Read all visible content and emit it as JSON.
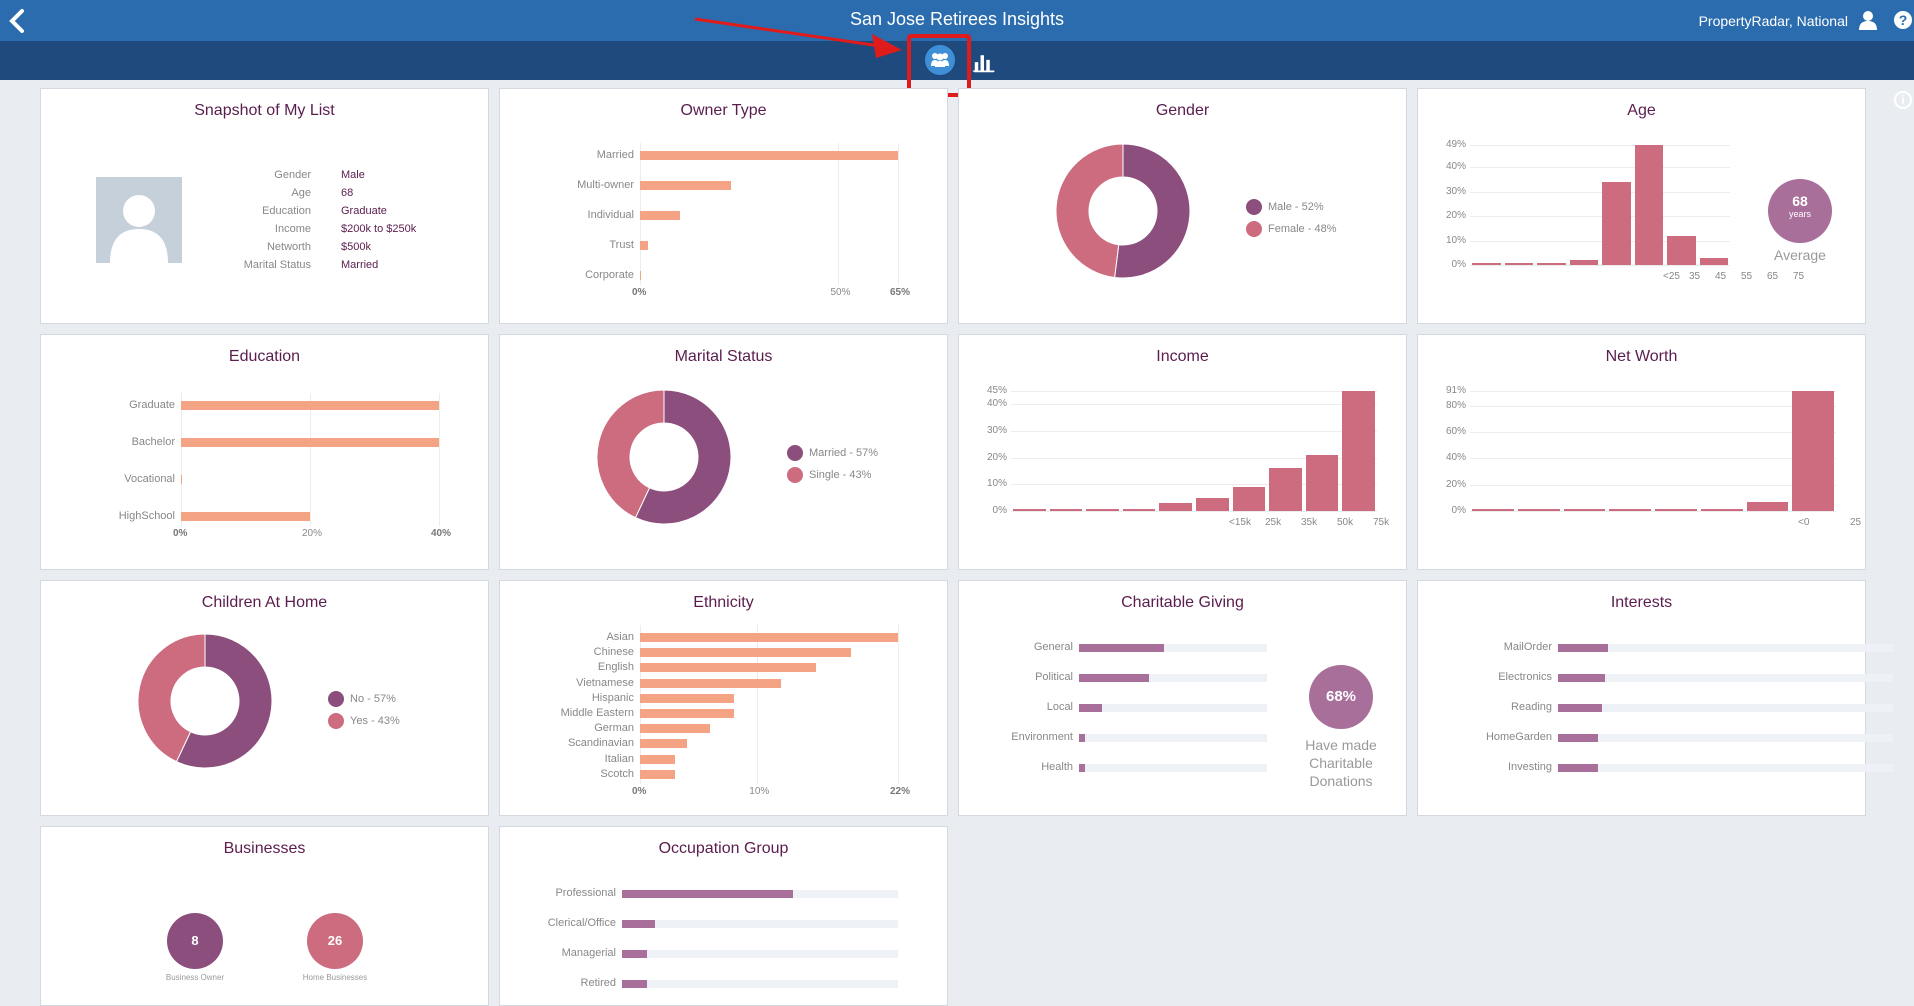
{
  "header": {
    "title": "San Jose Retirees Insights",
    "account": "PropertyRadar, National",
    "help": "?",
    "info": "i"
  },
  "colors": {
    "purple": "#8c4e7c",
    "rose": "#cc6c7e",
    "peach": "#f4a484",
    "mauve": "#a86f9b",
    "topbar": "#2b6cae",
    "subbar": "#1e4a7d"
  },
  "snapshot": {
    "title": "Snapshot of My List",
    "rows": [
      {
        "label": "Gender",
        "value": "Male"
      },
      {
        "label": "Age",
        "value": "68"
      },
      {
        "label": "Education",
        "value": "Graduate"
      },
      {
        "label": "Income",
        "value": "$200k to $250k"
      },
      {
        "label": "Networth",
        "value": "$500k"
      },
      {
        "label": "Marital Status",
        "value": "Married"
      }
    ]
  },
  "owner_type": {
    "title": "Owner Type",
    "categories": [
      "Married",
      "Multi-owner",
      "Individual",
      "Trust",
      "Corporate"
    ],
    "values": [
      65,
      23,
      10,
      2,
      0.3
    ],
    "ticks": [
      "0%",
      "50%",
      "65%"
    ]
  },
  "gender": {
    "title": "Gender",
    "legend": [
      "Male - 52%",
      "Female - 48%"
    ],
    "values": [
      52,
      48
    ]
  },
  "age": {
    "title": "Age",
    "yticks": [
      "49%",
      "40%",
      "30%",
      "20%",
      "10%",
      "0%"
    ],
    "xticks": [
      "<25",
      "35",
      "45",
      "55",
      "65",
      "75"
    ],
    "values": [
      0.3,
      0.3,
      0.3,
      2,
      34,
      49,
      12,
      3
    ],
    "avg": "68",
    "avg_unit": "years",
    "avg_label": "Average"
  },
  "education": {
    "title": "Education",
    "categories": [
      "Graduate",
      "Bachelor",
      "Vocational",
      "HighSchool"
    ],
    "values": [
      40,
      40,
      0,
      20
    ],
    "ticks": [
      "0%",
      "20%",
      "40%"
    ]
  },
  "marital": {
    "title": "Marital Status",
    "legend": [
      "Married - 57%",
      "Single - 43%"
    ],
    "values": [
      57,
      43
    ]
  },
  "income": {
    "title": "Income",
    "yticks": [
      "45%",
      "40%",
      "30%",
      "20%",
      "10%",
      "0%"
    ],
    "xticks": [
      "<15k",
      "25k",
      "35k",
      "50k",
      "75k"
    ],
    "values": [
      0.3,
      0.3,
      0.3,
      0.3,
      3,
      5,
      9,
      16,
      21,
      45
    ]
  },
  "networth": {
    "title": "Net Worth",
    "yticks": [
      "91%",
      "80%",
      "60%",
      "40%",
      "20%",
      "0%"
    ],
    "xticks": [
      "<0",
      "25"
    ],
    "values": [
      0.3,
      1,
      0.5,
      0.3,
      0.5,
      1,
      7,
      91
    ]
  },
  "children": {
    "title": "Children At Home",
    "legend": [
      "No - 57%",
      "Yes - 43%"
    ],
    "values": [
      57,
      43
    ]
  },
  "ethnicity": {
    "title": "Ethnicity",
    "categories": [
      "Asian",
      "Chinese",
      "English",
      "Vietnamese",
      "Hispanic",
      "Middle Eastern",
      "German",
      "Scandinavian",
      "Italian",
      "Scotch"
    ],
    "values": [
      22,
      18,
      15,
      12,
      8,
      8,
      6,
      4,
      3,
      3
    ],
    "ticks": [
      "0%",
      "10%",
      "22%"
    ]
  },
  "charity": {
    "title": "Charitable Giving",
    "categories": [
      "General",
      "Political",
      "Local",
      "Environment",
      "Health"
    ],
    "values": [
      45,
      37,
      12,
      3,
      3
    ],
    "pct": "68%",
    "caption": [
      "Have made",
      "Charitable",
      "Donations"
    ]
  },
  "interests": {
    "title": "Interests",
    "categories": [
      "MailOrder",
      "Electronics",
      "Reading",
      "HomeGarden",
      "Investing"
    ],
    "values": [
      15,
      14,
      13,
      12,
      12
    ]
  },
  "businesses": {
    "title": "Businesses",
    "items": [
      {
        "value": "8",
        "label": "Business Owner"
      },
      {
        "value": "26",
        "label": "Home Businesses"
      }
    ]
  },
  "occupation": {
    "title": "Occupation Group",
    "categories": [
      "Professional",
      "Clerical/Office",
      "Managerial",
      "Retired"
    ],
    "values": [
      62,
      12,
      9,
      9
    ]
  }
}
